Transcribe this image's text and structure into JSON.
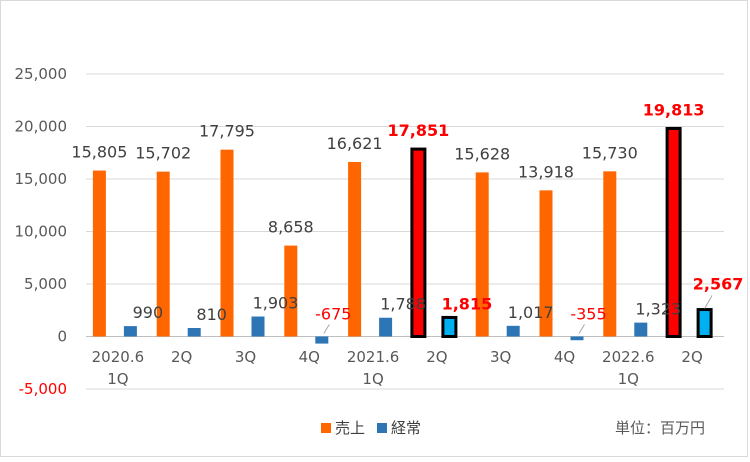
{
  "chart_data": {
    "type": "bar",
    "categories": [
      "2020.6\n1Q",
      "2Q",
      "3Q",
      "4Q",
      "2021.6\n1Q",
      "2Q",
      "3Q",
      "4Q",
      "2022.6\n1Q",
      "2Q"
    ],
    "series": [
      {
        "name": "売上",
        "color": "#FF6600",
        "values": [
          15805,
          15702,
          17795,
          8658,
          16621,
          17851,
          15628,
          13918,
          15730,
          19813
        ],
        "labels": [
          "15,805",
          "15,702",
          "17,795",
          "8,658",
          "16,621",
          "17,851",
          "15,628",
          "13,918",
          "15,730",
          "19,813"
        ]
      },
      {
        "name": "経常",
        "color": "#2E75B6",
        "values": [
          990,
          810,
          1903,
          -675,
          1788,
          1815,
          1017,
          -355,
          1323,
          2567
        ],
        "labels": [
          "990",
          "810",
          "1,903",
          "-675",
          "1,788",
          "1,815",
          "1,017",
          "-355",
          "1,323",
          "2,567"
        ]
      }
    ],
    "highlight": {
      "indices": [
        5,
        9
      ],
      "sales_color": "#FF0000",
      "ordinary_color": "#00B0F0",
      "outline_color": "#000000",
      "label_color": "#FF0000"
    },
    "negative_label_color": "#FF0000",
    "label_color": "#404040",
    "ylim": [
      -5000,
      25000
    ],
    "yticks": [
      -5000,
      0,
      5000,
      10000,
      15000,
      20000,
      25000
    ],
    "ytick_labels": [
      "-5,000",
      "0",
      "5,000",
      "10,000",
      "15,000",
      "20,000",
      "25,000"
    ],
    "grid": true,
    "legend_position": "bottom",
    "unit_label": "単位：百万円"
  }
}
